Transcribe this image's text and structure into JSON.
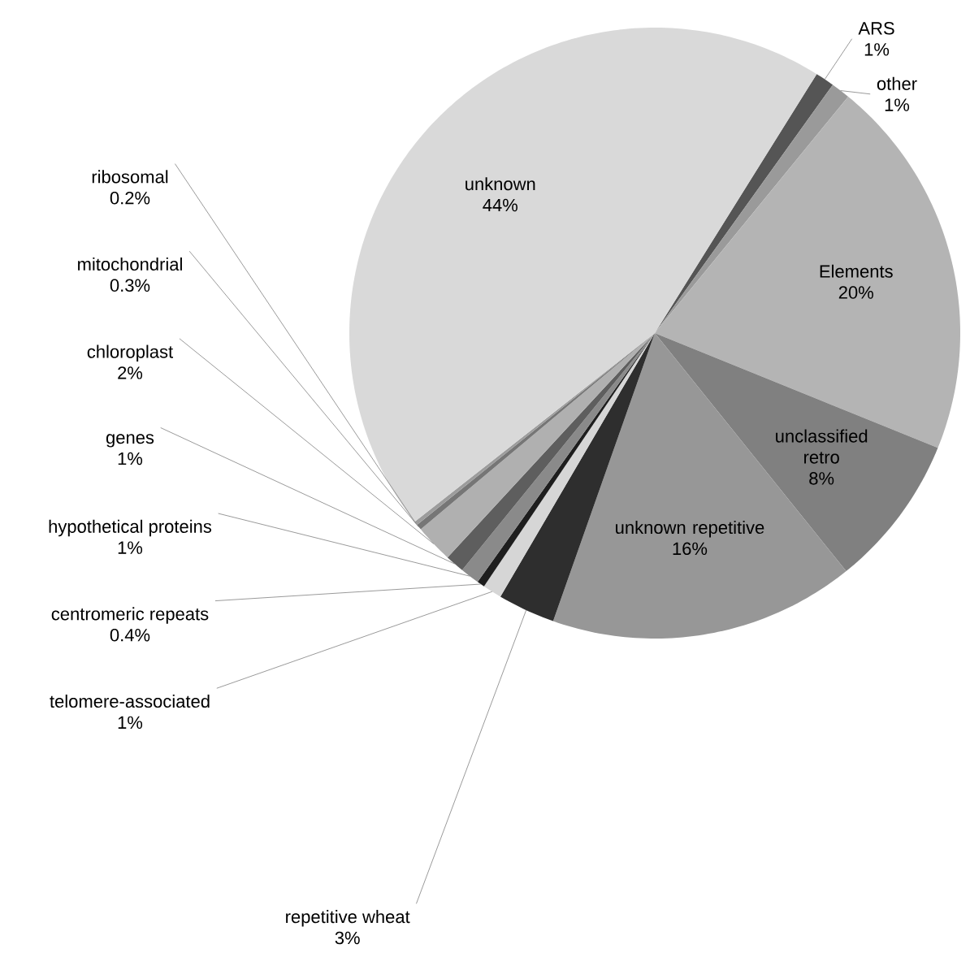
{
  "chart_data": {
    "type": "pie",
    "categories": [
      "ARS",
      "other",
      "Elements",
      "unclassified retro",
      "unknown repetitive",
      "repetitive wheat",
      "telomere-associated",
      "centromeric repeats",
      "hypothetical proteins",
      "genes",
      "chloroplast",
      "mitochondrial",
      "ribosomal",
      "unknown"
    ],
    "values": [
      1,
      1,
      20,
      8,
      16,
      3,
      1,
      0.4,
      1,
      1,
      2,
      0.3,
      0.2,
      44
    ],
    "value_labels": [
      "1%",
      "1%",
      "20%",
      "8%",
      "16%",
      "3%",
      "1%",
      "0.4%",
      "1%",
      "1%",
      "2%",
      "0.3%",
      "0.2%",
      "44%"
    ],
    "colors": [
      "#555555",
      "#9a9a9a",
      "#b4b4b4",
      "#808080",
      "#979797",
      "#2e2e2e",
      "#d6d6d6",
      "#1e1e1e",
      "#8a8a8a",
      "#5e5e5e",
      "#b0b0b0",
      "#767676",
      "#9c9c9c",
      "#d9d9d9"
    ]
  }
}
